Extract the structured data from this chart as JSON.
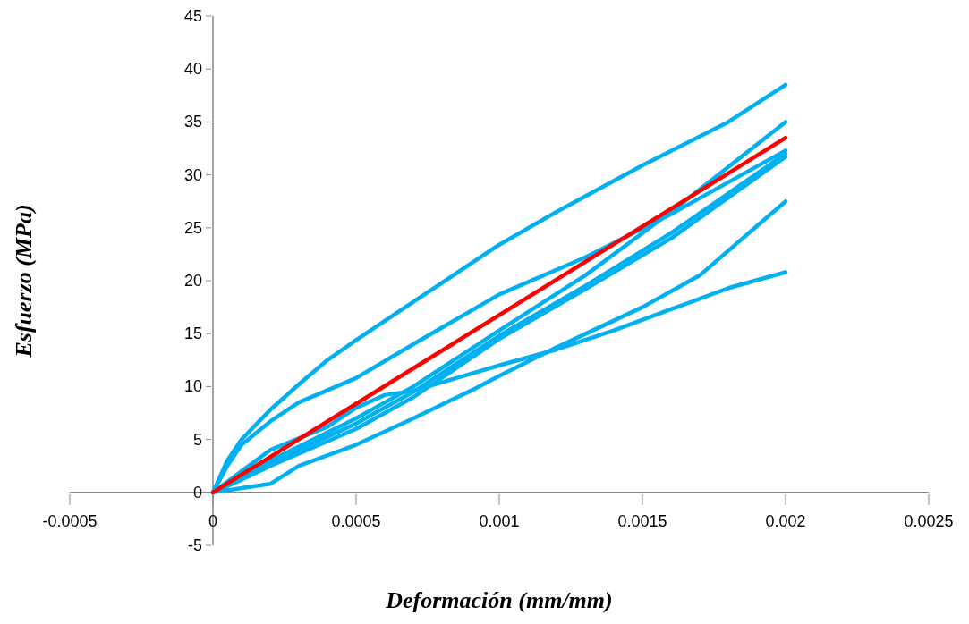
{
  "chart_data": {
    "type": "line",
    "xlabel": "Deformación (mm/mm)",
    "ylabel": "Esfuerzo (MPa)",
    "xlim": [
      -0.0005,
      0.0025
    ],
    "xticks": [
      -0.0005,
      0,
      0.0005,
      0.001,
      0.0015,
      0.002,
      0.0025
    ],
    "ylim": [
      -5,
      45
    ],
    "yticks": [
      -5,
      0,
      5,
      10,
      15,
      20,
      25,
      30,
      35,
      40,
      45
    ],
    "series": [
      {
        "color": "#00b0f0",
        "x": [
          0,
          5e-05,
          0.0001,
          0.0002,
          0.0003,
          0.0004,
          0.0005,
          0.0007,
          0.001,
          0.0012,
          0.0015,
          0.0018,
          0.002
        ],
        "values": [
          0,
          3,
          5,
          7.8,
          10.2,
          12.5,
          14.4,
          18,
          23.4,
          26.5,
          30.9,
          35,
          38.5
        ]
      },
      {
        "color": "#00b0f0",
        "x": [
          0,
          5e-05,
          0.0001,
          0.0002,
          0.0003,
          0.0005,
          0.0007,
          0.001,
          0.0013,
          0.0016,
          0.0018,
          0.002
        ],
        "values": [
          0,
          2.5,
          4.5,
          6.7,
          8.5,
          10.8,
          14,
          18.7,
          22.2,
          26.3,
          29.3,
          32.3
        ]
      },
      {
        "color": "#00b0f0",
        "x": [
          0,
          0.0001,
          0.0002,
          0.0004,
          0.0005,
          0.0006,
          0.0007,
          0.0008,
          0.001,
          0.0012,
          0.0014,
          0.0016,
          0.0018,
          0.002
        ],
        "values": [
          0,
          2,
          4,
          6.2,
          8,
          9.2,
          9.6,
          10.4,
          12,
          13.5,
          15.3,
          17.3,
          19.3,
          20.8
        ]
      },
      {
        "color": "#00b0f0",
        "x": [
          0,
          0.0001,
          0.0002,
          0.0003,
          0.0005,
          0.0007,
          0.0009,
          0.001,
          0.0012,
          0.0015,
          0.0017,
          0.002
        ],
        "values": [
          0,
          0.4,
          0.8,
          2.5,
          4.5,
          7,
          9.6,
          11,
          13.7,
          17.5,
          20.5,
          27.5
        ]
      },
      {
        "color": "#00b0f0",
        "x": [
          0,
          0.0001,
          0.0002,
          0.0005,
          0.0007,
          0.001,
          0.0013,
          0.0016,
          0.002
        ],
        "values": [
          0,
          1.5,
          3,
          7,
          10,
          15.3,
          20.5,
          26.5,
          35
        ]
      },
      {
        "color": "#00b0f0",
        "x": [
          0,
          0.0001,
          0.0002,
          0.0005,
          0.0007,
          0.001,
          0.0013,
          0.0016,
          0.002
        ],
        "values": [
          0,
          1.4,
          2.8,
          6.5,
          9.5,
          14.8,
          19.5,
          24.5,
          32
        ]
      },
      {
        "color": "#00b0f0",
        "x": [
          0,
          0.0001,
          0.0002,
          0.0005,
          0.0007,
          0.001,
          0.0013,
          0.0016,
          0.002
        ],
        "values": [
          0,
          1.2,
          2.5,
          6,
          9,
          14.5,
          19.2,
          24,
          31.7
        ]
      },
      {
        "color": "#ff0000",
        "x": [
          0,
          0.002
        ],
        "values": [
          0,
          33.5
        ]
      }
    ]
  }
}
